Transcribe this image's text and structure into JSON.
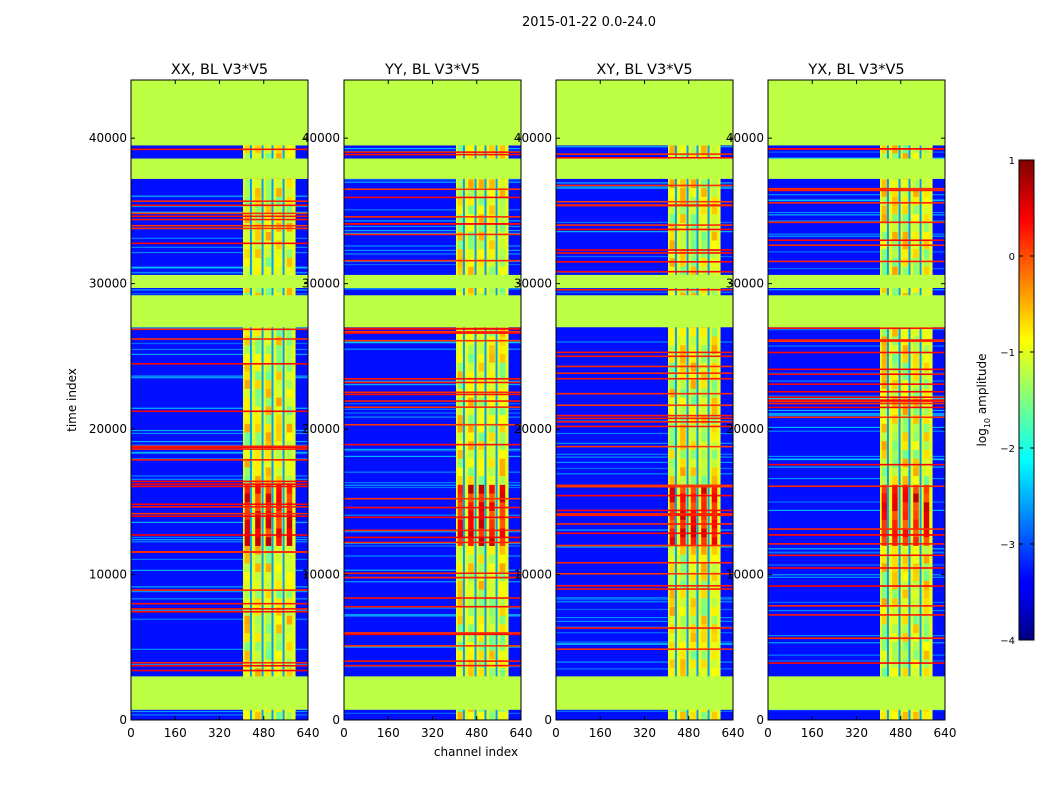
{
  "chart_data": {
    "type": "heatmap",
    "suptitle": "2015-01-22 0.0-24.0",
    "xlabel": "channel index",
    "ylabel": "time index",
    "x_ticks": [
      0,
      160,
      320,
      480,
      640
    ],
    "y_ticks": [
      0,
      10000,
      20000,
      30000,
      40000
    ],
    "xlim": [
      0,
      640
    ],
    "ylim": [
      0,
      44000
    ],
    "colorbar": {
      "label": "log10 amplitude",
      "label_base": "log",
      "label_sub": "10",
      "label_rest": " amplitude",
      "ticks": [
        1,
        0,
        -1,
        -2,
        -3,
        -4
      ],
      "tick_labels": [
        "1",
        "0",
        "−1",
        "−2",
        "−3",
        "−4"
      ],
      "range": [
        -4,
        1
      ],
      "colormap": "jet"
    },
    "panels": [
      {
        "title": "XX, BL V3*V5",
        "pol": "XX"
      },
      {
        "title": "YY, BL V3*V5",
        "pol": "YY"
      },
      {
        "title": "XY, BL V3*V5",
        "pol": "XY"
      },
      {
        "title": "YX, BL V3*V5",
        "pol": "YX"
      }
    ],
    "flagged_value": -1.2,
    "background_value": -3.3,
    "data_band": {
      "channel_range": [
        405,
        595
      ],
      "typical_value": -1.0
    },
    "flagged_time_ranges": [
      [
        700,
        3000
      ],
      [
        27000,
        29200
      ],
      [
        29700,
        30600
      ],
      [
        37200,
        38600
      ],
      [
        39500,
        44000
      ]
    ],
    "hot_region": {
      "time_range": [
        12000,
        16000
      ],
      "value": 0.3
    }
  }
}
